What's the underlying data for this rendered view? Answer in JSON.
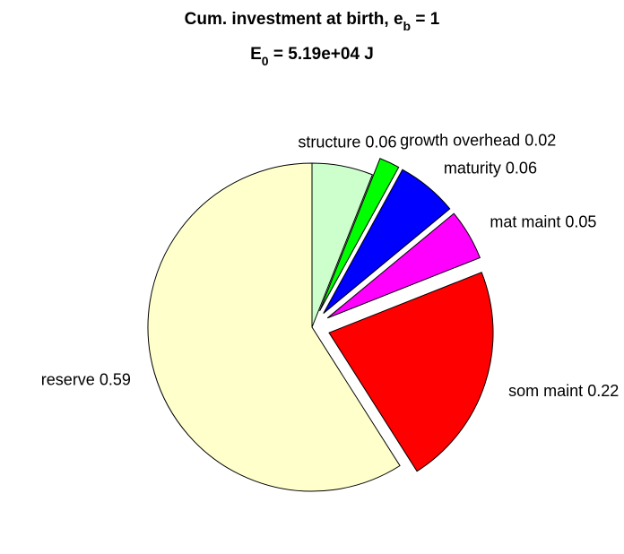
{
  "chart_data": {
    "type": "pie",
    "title": {
      "text": "Cum. investment at birth, e",
      "sub": "b",
      "rest": " = 1"
    },
    "subtitle": {
      "text": "E",
      "sub": "0",
      "rest": " = 5.19e+04 J"
    },
    "categories": [
      "structure",
      "growth overhead",
      "maturity",
      "mat maint",
      "som maint",
      "reserve"
    ],
    "values": [
      0.06,
      0.02,
      0.06,
      0.05,
      0.22,
      0.59
    ],
    "colors": [
      "#ccffcc",
      "#00ff00",
      "#0000ff",
      "#ff00ff",
      "#ff0000",
      "#ffffcc"
    ],
    "explode": [
      false,
      true,
      true,
      true,
      true,
      false
    ]
  }
}
